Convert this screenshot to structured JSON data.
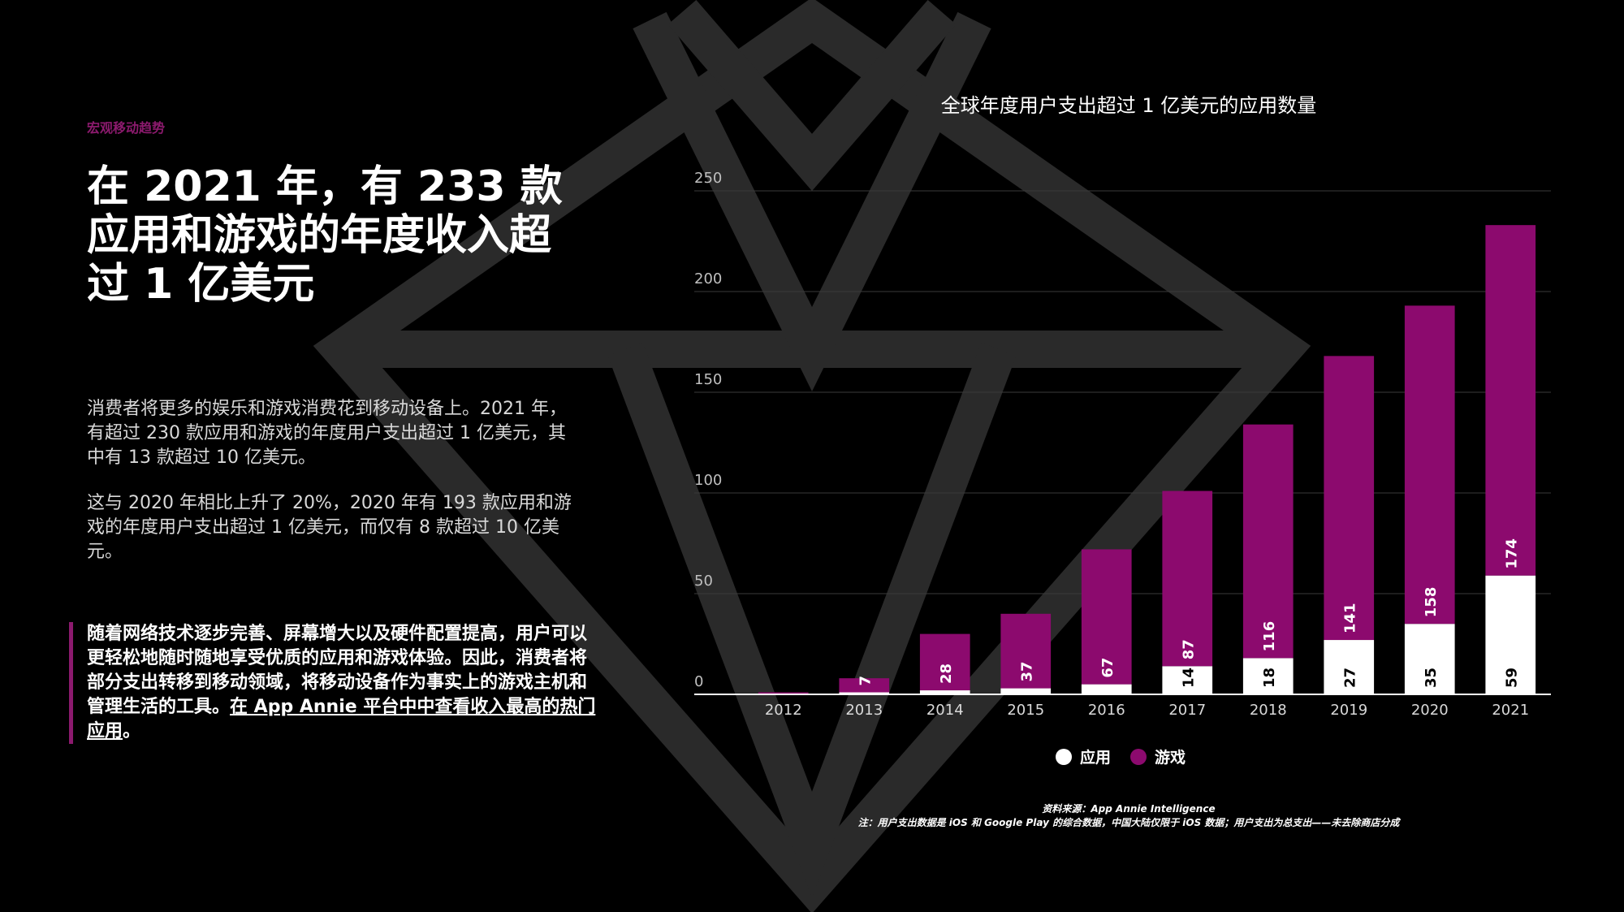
{
  "kicker": "宏观移动趋势",
  "headline": "在 2021 年，有 233 款应用和游戏的年度收入超过 1 亿美元",
  "paragraph1": "消费者将更多的娱乐和游戏消费花到移动设备上。2021 年，有超过 230 款应用和游戏的年度用户支出超过 1 亿美元，其中有 13 款超过 10 亿美元。",
  "paragraph2": "这与 2020 年相比上升了 20%，2020 年有 193 款应用和游戏的年度用户支出超过 1 亿美元，而仅有 8 款超过 10 亿美元。",
  "quote": {
    "text": "随着网络技术逐步完善、屏幕增大以及硬件配置提高，用户可以更轻松地随时随地享受优质的应用和游戏体验。因此，消费者将部分支出转移到移动领域，将移动设备作为事实上的游戏主机和管理生活的工具。",
    "link": "在 App Annie 平台中中查看收入最高的热门应用",
    "end": "。"
  },
  "colors": {
    "accent": "#8c0a6e",
    "app": "#ffffff",
    "game": "#8c0a6e",
    "background": "#000000"
  },
  "chart_data": {
    "type": "bar",
    "stacked": true,
    "title": "全球年度用户支出超过 1 亿美元的应用数量",
    "categories": [
      "2012",
      "2013",
      "2014",
      "2015",
      "2016",
      "2017",
      "2018",
      "2019",
      "2020",
      "2021"
    ],
    "series": [
      {
        "name": "应用",
        "values": [
          0,
          1,
          2,
          3,
          5,
          14,
          18,
          27,
          35,
          59
        ],
        "labels": [
          "",
          "",
          "",
          "",
          "",
          "14",
          "18",
          "27",
          "35",
          "59"
        ]
      },
      {
        "name": "游戏",
        "values": [
          1,
          7,
          28,
          37,
          67,
          87,
          116,
          141,
          158,
          174
        ],
        "labels": [
          "",
          "7",
          "28",
          "37",
          "67",
          "87",
          "116",
          "141",
          "158",
          "174"
        ]
      }
    ],
    "ylim": [
      0,
      250
    ],
    "yticks": [
      0,
      50,
      100,
      150,
      200,
      250
    ],
    "grid": true,
    "legend": "bottom-center"
  },
  "notes": {
    "source": "资料来源：App Annie Intelligence",
    "note": "注：用户支出数据是 iOS 和 Google Play 的综合数据，中国大陆仅限于 iOS 数据；用户支出为总支出——未去除商店分成"
  }
}
